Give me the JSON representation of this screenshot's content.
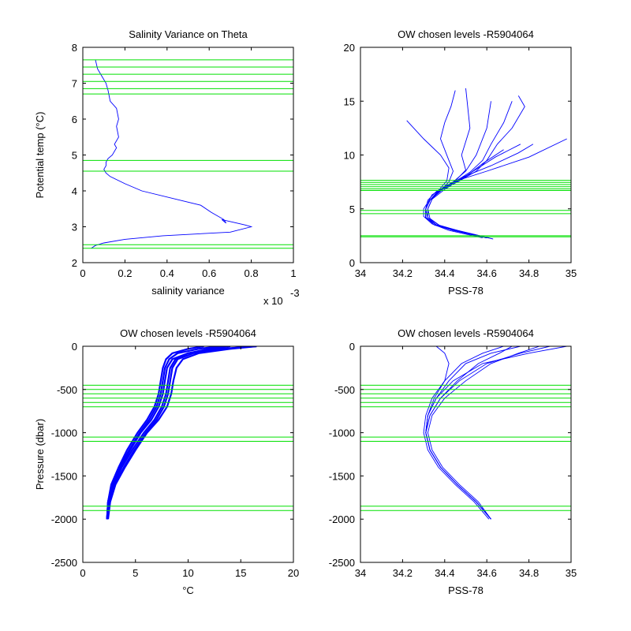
{
  "chart_data": [
    {
      "type": "line",
      "title": "Salinity Variance on Theta",
      "xlabel": "salinity variance",
      "ylabel": "Potential temp (°C)",
      "xlim": [
        0,
        1
      ],
      "ylim": [
        2,
        8
      ],
      "xticks": [
        0,
        0.2,
        0.4,
        0.6,
        0.8,
        1
      ],
      "xtick_labels": [
        "0",
        "0.2",
        "0.4",
        "0.6",
        "0.8",
        "1"
      ],
      "yticks": [
        2,
        3,
        4,
        5,
        6,
        7,
        8
      ],
      "ytick_labels": [
        "2",
        "3",
        "4",
        "5",
        "6",
        "7",
        "8"
      ],
      "x_multiplier": "x 10",
      "x_multiplier_exp": "-3",
      "series": [
        {
          "color": "#0000ff",
          "x": [
            0.06,
            0.07,
            0.09,
            0.11,
            0.12,
            0.13,
            0.16,
            0.17,
            0.16,
            0.17,
            0.15,
            0.16,
            0.14,
            0.12,
            0.11,
            0.11,
            0.1,
            0.11,
            0.13,
            0.2,
            0.28,
            0.56,
            0.61,
            0.67,
            0.68,
            0.66,
            0.77,
            0.8,
            0.7,
            0.38,
            0.2,
            0.1,
            0.06,
            0.04
          ],
          "y": [
            7.65,
            7.4,
            7.2,
            7.0,
            6.8,
            6.5,
            6.3,
            6.0,
            5.8,
            5.5,
            5.3,
            5.2,
            5.0,
            4.9,
            4.8,
            4.7,
            4.6,
            4.5,
            4.4,
            4.2,
            4.0,
            3.6,
            3.4,
            3.2,
            3.1,
            3.2,
            3.05,
            3.0,
            2.85,
            2.75,
            2.65,
            2.55,
            2.48,
            2.4
          ]
        }
      ],
      "hlines": [
        7.65,
        7.45,
        7.25,
        7.05,
        6.85,
        6.7,
        4.85,
        4.55,
        2.5,
        2.4
      ],
      "hline_color": "#00e000"
    },
    {
      "type": "line",
      "title": "OW chosen levels -R5904064",
      "xlabel": "PSS-78",
      "ylabel": "",
      "xlim": [
        34,
        35
      ],
      "ylim": [
        0,
        20
      ],
      "xticks": [
        34,
        34.2,
        34.4,
        34.6,
        34.8,
        35
      ],
      "xtick_labels": [
        "34",
        "34.2",
        "34.4",
        "34.6",
        "34.8",
        "35"
      ],
      "yticks": [
        0,
        5,
        10,
        15,
        20
      ],
      "ytick_labels": [
        "0",
        "5",
        "10",
        "15",
        "20"
      ],
      "series": [
        {
          "color": "#0000ff",
          "x": [
            34.6,
            34.45,
            34.36,
            34.32,
            34.31,
            34.32,
            34.36,
            34.44,
            34.6,
            34.8,
            34.98
          ],
          "y": [
            2.3,
            3.0,
            3.5,
            4.2,
            5.0,
            5.8,
            6.6,
            7.5,
            8.5,
            9.8,
            11.5
          ]
        },
        {
          "color": "#0000ff",
          "x": [
            34.63,
            34.48,
            34.38,
            34.33,
            34.32,
            34.34,
            34.38,
            34.48,
            34.62,
            34.75,
            34.82
          ],
          "y": [
            2.2,
            2.9,
            3.4,
            4.1,
            5.0,
            5.9,
            6.8,
            7.9,
            9.0,
            10.2,
            11.0
          ]
        },
        {
          "color": "#0000ff",
          "x": [
            34.58,
            34.42,
            34.34,
            34.3,
            34.3,
            34.32,
            34.34,
            34.4,
            34.5,
            34.58,
            34.68
          ],
          "y": [
            2.3,
            3.0,
            3.6,
            4.3,
            5.0,
            5.6,
            6.3,
            7.0,
            8.0,
            9.2,
            10.5
          ]
        },
        {
          "color": "#0000ff",
          "x": [
            34.6,
            34.44,
            34.35,
            34.31,
            34.31,
            34.33,
            34.37,
            34.44,
            34.52,
            34.58,
            34.62,
            34.68,
            34.72
          ],
          "y": [
            2.3,
            3.0,
            3.5,
            4.2,
            5.0,
            5.8,
            6.6,
            7.4,
            8.4,
            9.5,
            11.0,
            13.0,
            15.0
          ]
        },
        {
          "color": "#0000ff",
          "x": [
            34.61,
            34.46,
            34.37,
            34.32,
            34.32,
            34.34,
            34.4,
            34.48,
            34.56,
            34.64,
            34.7,
            34.76
          ],
          "y": [
            2.3,
            3.0,
            3.5,
            4.2,
            5.0,
            5.9,
            6.8,
            7.8,
            8.8,
            9.8,
            10.4,
            11.0
          ]
        },
        {
          "color": "#0000ff",
          "x": [
            34.6,
            34.44,
            34.36,
            34.31,
            34.31,
            34.33,
            34.38,
            34.42,
            34.44,
            34.42,
            34.4,
            34.38,
            34.4,
            34.43,
            34.45
          ],
          "y": [
            2.3,
            3.0,
            3.5,
            4.2,
            5.0,
            5.8,
            6.7,
            7.5,
            8.5,
            9.5,
            10.5,
            11.5,
            13.0,
            14.5,
            16.0
          ]
        },
        {
          "color": "#0000ff",
          "x": [
            34.6,
            34.44,
            34.36,
            34.31,
            34.31,
            34.33,
            34.37,
            34.41,
            34.42,
            34.38,
            34.3,
            34.22
          ],
          "y": [
            2.3,
            3.0,
            3.5,
            4.2,
            5.0,
            5.8,
            6.7,
            7.6,
            8.8,
            10.0,
            11.5,
            13.2
          ]
        },
        {
          "color": "#0000ff",
          "x": [
            34.6,
            34.44,
            34.36,
            34.31,
            34.31,
            34.33,
            34.39,
            34.45,
            34.5,
            34.48,
            34.52,
            34.5
          ],
          "y": [
            2.3,
            3.0,
            3.5,
            4.2,
            5.0,
            5.8,
            6.8,
            7.6,
            8.6,
            10.0,
            12.5,
            16.2
          ]
        },
        {
          "color": "#0000ff",
          "x": [
            34.6,
            34.44,
            34.36,
            34.31,
            34.31,
            34.33,
            34.39,
            34.47,
            34.55,
            34.6,
            34.65,
            34.72,
            34.78,
            34.75
          ],
          "y": [
            2.3,
            3.0,
            3.5,
            4.2,
            5.0,
            5.8,
            6.8,
            7.6,
            8.5,
            9.5,
            11.0,
            12.5,
            14.5,
            15.5
          ]
        },
        {
          "color": "#0000ff",
          "x": [
            34.6,
            34.44,
            34.36,
            34.31,
            34.31,
            34.33,
            34.38,
            34.44,
            34.5,
            34.55,
            34.6,
            34.62
          ],
          "y": [
            2.3,
            3.0,
            3.5,
            4.2,
            5.0,
            5.8,
            6.7,
            7.5,
            8.5,
            10.0,
            12.5,
            15.0
          ]
        }
      ],
      "hlines": [
        7.65,
        7.45,
        7.25,
        7.05,
        6.85,
        6.7,
        4.85,
        4.55,
        2.5,
        2.4
      ],
      "hline_color": "#00e000"
    },
    {
      "type": "line",
      "title": "OW chosen levels -R5904064",
      "xlabel": "°C",
      "ylabel": "Pressure (dbar)",
      "xlim": [
        0,
        20
      ],
      "ylim": [
        -2500,
        0
      ],
      "xticks": [
        0,
        5,
        10,
        15,
        20
      ],
      "xtick_labels": [
        "0",
        "5",
        "10",
        "15",
        "20"
      ],
      "yticks": [
        0,
        -500,
        -1000,
        -1500,
        -2000,
        -2500
      ],
      "ytick_labels": [
        "0",
        "-500",
        "-1000",
        "-1500",
        "-2000",
        "-2500"
      ],
      "series": [
        {
          "color": "#0000ff",
          "x": [
            2.3,
            2.4,
            2.8,
            3.6,
            4.5,
            5.5,
            6.5,
            7.2,
            7.6,
            7.8,
            8.0,
            8.5,
            10.0,
            13.0,
            16.5
          ],
          "y": [
            -2000,
            -1800,
            -1600,
            -1400,
            -1200,
            -1000,
            -850,
            -700,
            -550,
            -400,
            -250,
            -150,
            -80,
            -30,
            0
          ]
        },
        {
          "color": "#0000ff",
          "x": [
            2.3,
            2.5,
            3.0,
            3.9,
            4.9,
            6.0,
            7.0,
            7.7,
            8.1,
            8.3,
            8.5,
            9.0,
            10.5,
            13.5,
            16.0
          ],
          "y": [
            -2000,
            -1800,
            -1600,
            -1400,
            -1200,
            -1000,
            -850,
            -700,
            -550,
            -400,
            -250,
            -150,
            -80,
            -30,
            0
          ]
        },
        {
          "color": "#0000ff",
          "x": [
            2.3,
            2.4,
            2.7,
            3.4,
            4.2,
            5.2,
            6.1,
            6.8,
            7.2,
            7.4,
            7.6,
            7.9,
            8.5,
            10.0,
            11.5
          ],
          "y": [
            -2000,
            -1800,
            -1600,
            -1400,
            -1200,
            -1000,
            -850,
            -700,
            -550,
            -400,
            -250,
            -150,
            -80,
            -30,
            0
          ]
        },
        {
          "color": "#0000ff",
          "x": [
            2.4,
            2.6,
            3.1,
            4.0,
            5.0,
            6.1,
            7.2,
            8.0,
            8.4,
            8.6,
            8.9,
            9.5,
            11.0,
            14.0,
            16.5
          ],
          "y": [
            -2000,
            -1800,
            -1600,
            -1400,
            -1200,
            -1000,
            -850,
            -700,
            -550,
            -400,
            -250,
            -150,
            -80,
            -30,
            0
          ]
        },
        {
          "color": "#0000ff",
          "x": [
            2.3,
            2.45,
            2.9,
            3.7,
            4.7,
            5.8,
            6.8,
            7.5,
            7.9,
            8.1,
            8.3,
            8.8,
            10.0,
            12.0,
            14.0
          ],
          "y": [
            -2000,
            -1800,
            -1600,
            -1400,
            -1200,
            -1000,
            -850,
            -700,
            -550,
            -400,
            -250,
            -150,
            -80,
            -30,
            0
          ]
        },
        {
          "color": "#0000ff",
          "x": [
            2.3,
            2.4,
            2.75,
            3.5,
            4.4,
            5.4,
            6.3,
            7.0,
            7.4,
            7.6,
            7.8,
            8.2,
            9.0,
            11.0,
            13.0
          ],
          "y": [
            -2000,
            -1800,
            -1600,
            -1400,
            -1200,
            -1000,
            -850,
            -700,
            -550,
            -400,
            -250,
            -150,
            -80,
            -30,
            0
          ]
        }
      ],
      "hlines": [
        -450,
        -500,
        -550,
        -600,
        -650,
        -700,
        -1050,
        -1100,
        -1850,
        -1900
      ],
      "hline_color": "#00e000"
    },
    {
      "type": "line",
      "title": "OW chosen levels -R5904064",
      "xlabel": "PSS-78",
      "ylabel": "",
      "xlim": [
        34,
        35
      ],
      "ylim": [
        -2500,
        0
      ],
      "xticks": [
        34,
        34.2,
        34.4,
        34.6,
        34.8,
        35
      ],
      "xtick_labels": [
        "34",
        "34.2",
        "34.4",
        "34.6",
        "34.8",
        "35"
      ],
      "yticks": [
        0,
        -500,
        -1000,
        -1500,
        -2000,
        -2500
      ],
      "ytick_labels": [
        "0",
        "-500",
        "-1000",
        "-1500",
        "-2000",
        "-2500"
      ],
      "series": [
        {
          "color": "#0000ff",
          "x": [
            34.62,
            34.55,
            34.46,
            34.38,
            34.33,
            34.31,
            34.32,
            34.36,
            34.44,
            34.58,
            34.8,
            34.98
          ],
          "y": [
            -2000,
            -1800,
            -1600,
            -1400,
            -1200,
            -1000,
            -800,
            -600,
            -400,
            -200,
            -80,
            0
          ]
        },
        {
          "color": "#0000ff",
          "x": [
            34.62,
            34.56,
            34.47,
            34.39,
            34.34,
            34.32,
            34.34,
            34.4,
            34.5,
            34.62,
            34.75,
            34.85
          ],
          "y": [
            -2000,
            -1800,
            -1600,
            -1400,
            -1200,
            -1000,
            -800,
            -600,
            -400,
            -200,
            -80,
            0
          ]
        },
        {
          "color": "#0000ff",
          "x": [
            34.61,
            34.54,
            34.45,
            34.37,
            34.32,
            34.3,
            34.31,
            34.34,
            34.4,
            34.48,
            34.58,
            34.68
          ],
          "y": [
            -2000,
            -1800,
            -1600,
            -1400,
            -1200,
            -1000,
            -800,
            -600,
            -400,
            -200,
            -80,
            0
          ]
        },
        {
          "color": "#0000ff",
          "x": [
            34.62,
            34.55,
            34.46,
            34.38,
            34.33,
            34.31,
            34.33,
            34.38,
            34.46,
            34.56,
            34.66,
            34.72
          ],
          "y": [
            -2000,
            -1800,
            -1600,
            -1400,
            -1200,
            -1000,
            -800,
            -600,
            -400,
            -200,
            -80,
            0
          ]
        },
        {
          "color": "#0000ff",
          "x": [
            34.62,
            34.55,
            34.46,
            34.38,
            34.33,
            34.31,
            34.32,
            34.35,
            34.4,
            34.42,
            34.4,
            34.36
          ],
          "y": [
            -2000,
            -1800,
            -1600,
            -1400,
            -1200,
            -1000,
            -800,
            -600,
            -400,
            -200,
            -80,
            0
          ]
        },
        {
          "color": "#0000ff",
          "x": [
            34.62,
            34.55,
            34.46,
            34.38,
            34.33,
            34.31,
            34.33,
            34.38,
            34.47,
            34.6,
            34.76,
            34.9
          ],
          "y": [
            -2000,
            -1800,
            -1600,
            -1400,
            -1200,
            -1000,
            -800,
            -600,
            -400,
            -200,
            -80,
            0
          ]
        },
        {
          "color": "#0000ff",
          "x": [
            34.62,
            34.55,
            34.46,
            34.38,
            34.33,
            34.31,
            34.32,
            34.36,
            34.42,
            34.5,
            34.62,
            34.76
          ],
          "y": [
            -2000,
            -1800,
            -1600,
            -1400,
            -1200,
            -1000,
            -800,
            -600,
            -400,
            -200,
            -80,
            0
          ]
        }
      ],
      "hlines": [
        -450,
        -500,
        -550,
        -600,
        -650,
        -700,
        -1050,
        -1100,
        -1850,
        -1900
      ],
      "hline_color": "#00e000"
    }
  ]
}
